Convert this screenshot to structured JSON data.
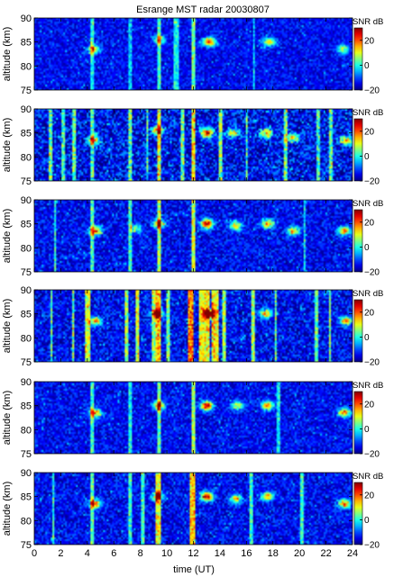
{
  "chart_data": {
    "type": "heatmap",
    "title": "Esrange MST radar 20030807",
    "xlabel": "time (UT)",
    "ylabel": "altitude (km)",
    "xlim": [
      0,
      24
    ],
    "ylim": [
      75,
      90
    ],
    "x_ticks": [
      "0",
      "2",
      "4",
      "6",
      "8",
      "10",
      "12",
      "14",
      "16",
      "18",
      "20",
      "22",
      "24"
    ],
    "y_ticks": [
      "75",
      "80",
      "85",
      "90"
    ],
    "colorbar": {
      "label": "SNR dB",
      "ticks": [
        "−20",
        "0",
        "20"
      ],
      "range": [
        -20,
        30
      ]
    },
    "panels": [
      {
        "noise": 0.1,
        "stripes": [
          {
            "t": 4.4,
            "w": 0.15,
            "s": 0.25
          },
          {
            "t": 7.2,
            "w": 0.1,
            "s": 0.2
          },
          {
            "t": 9.4,
            "w": 0.15,
            "s": 0.3
          },
          {
            "t": 10.7,
            "w": 0.2,
            "s": 0.25
          },
          {
            "t": 12.0,
            "w": 0.12,
            "s": 0.35
          },
          {
            "t": 16.6,
            "w": 0.1,
            "s": 0.2
          }
        ],
        "echoes": [
          {
            "t": 4.5,
            "a": 83.5,
            "amp": 0.55
          },
          {
            "t": 9.4,
            "a": 85.5,
            "amp": 0.45
          },
          {
            "t": 13.2,
            "a": 85.0,
            "amp": 0.7
          },
          {
            "t": 17.7,
            "a": 85.0,
            "amp": 0.55
          },
          {
            "t": 23.3,
            "a": 83.5,
            "amp": 0.45
          }
        ]
      },
      {
        "noise": 0.18,
        "stripes": [
          {
            "t": 1.2,
            "w": 0.12,
            "s": 0.35
          },
          {
            "t": 2.2,
            "w": 0.1,
            "s": 0.3
          },
          {
            "t": 3.0,
            "w": 0.1,
            "s": 0.35
          },
          {
            "t": 4.4,
            "w": 0.12,
            "s": 0.3
          },
          {
            "t": 7.2,
            "w": 0.12,
            "s": 0.35
          },
          {
            "t": 8.5,
            "w": 0.1,
            "s": 0.3
          },
          {
            "t": 9.4,
            "w": 0.15,
            "s": 0.45
          },
          {
            "t": 11.2,
            "w": 0.1,
            "s": 0.35
          },
          {
            "t": 12.0,
            "w": 0.15,
            "s": 0.5
          },
          {
            "t": 14.0,
            "w": 0.12,
            "s": 0.4
          },
          {
            "t": 16.0,
            "w": 0.1,
            "s": 0.3
          },
          {
            "t": 19.0,
            "w": 0.12,
            "s": 0.35
          },
          {
            "t": 21.4,
            "w": 0.1,
            "s": 0.3
          },
          {
            "t": 22.4,
            "w": 0.12,
            "s": 0.35
          }
        ],
        "echoes": [
          {
            "t": 4.5,
            "a": 83.5,
            "amp": 0.65
          },
          {
            "t": 9.3,
            "a": 85.5,
            "amp": 0.6
          },
          {
            "t": 13.0,
            "a": 85.0,
            "amp": 0.85
          },
          {
            "t": 15.0,
            "a": 85.0,
            "amp": 0.5
          },
          {
            "t": 17.5,
            "a": 85.0,
            "amp": 0.6
          },
          {
            "t": 19.5,
            "a": 84.0,
            "amp": 0.55
          },
          {
            "t": 23.5,
            "a": 83.5,
            "amp": 0.6
          }
        ]
      },
      {
        "noise": 0.12,
        "stripes": [
          {
            "t": 1.6,
            "w": 0.1,
            "s": 0.3
          },
          {
            "t": 4.4,
            "w": 0.12,
            "s": 0.3
          },
          {
            "t": 7.2,
            "w": 0.1,
            "s": 0.3
          },
          {
            "t": 9.4,
            "w": 0.15,
            "s": 0.4
          },
          {
            "t": 12.0,
            "w": 0.15,
            "s": 0.45
          },
          {
            "t": 20.4,
            "w": 0.1,
            "s": 0.25
          }
        ],
        "echoes": [
          {
            "t": 4.6,
            "a": 83.5,
            "amp": 0.65
          },
          {
            "t": 7.6,
            "a": 84.0,
            "amp": 0.4
          },
          {
            "t": 9.4,
            "a": 85.0,
            "amp": 0.65
          },
          {
            "t": 13.0,
            "a": 85.0,
            "amp": 0.9
          },
          {
            "t": 15.2,
            "a": 84.5,
            "amp": 0.55
          },
          {
            "t": 17.6,
            "a": 85.0,
            "amp": 0.65
          },
          {
            "t": 19.5,
            "a": 83.5,
            "amp": 0.55
          },
          {
            "t": 23.4,
            "a": 83.5,
            "amp": 0.65
          }
        ]
      },
      {
        "noise": 0.14,
        "stripes": [
          {
            "t": 1.3,
            "w": 0.12,
            "s": 0.35
          },
          {
            "t": 2.9,
            "w": 0.1,
            "s": 0.4
          },
          {
            "t": 4.0,
            "w": 0.2,
            "s": 0.45
          },
          {
            "t": 7.0,
            "w": 0.15,
            "s": 0.4
          },
          {
            "t": 7.8,
            "w": 0.12,
            "s": 0.45
          },
          {
            "t": 9.0,
            "w": 0.12,
            "s": 0.4
          },
          {
            "t": 9.4,
            "w": 0.2,
            "s": 0.55
          },
          {
            "t": 10.1,
            "w": 0.1,
            "s": 0.35
          },
          {
            "t": 11.8,
            "w": 0.25,
            "s": 0.65
          },
          {
            "t": 12.8,
            "w": 0.4,
            "s": 0.5
          },
          {
            "t": 13.6,
            "w": 0.25,
            "s": 0.5
          },
          {
            "t": 14.3,
            "w": 0.15,
            "s": 0.4
          },
          {
            "t": 16.5,
            "w": 0.15,
            "s": 0.4
          },
          {
            "t": 18.2,
            "w": 0.1,
            "s": 0.35
          },
          {
            "t": 21.3,
            "w": 0.1,
            "s": 0.35
          },
          {
            "t": 22.3,
            "w": 0.12,
            "s": 0.4
          }
        ],
        "echoes": [
          {
            "t": 4.6,
            "a": 83.5,
            "amp": 0.65
          },
          {
            "t": 9.3,
            "a": 85.0,
            "amp": 0.6
          },
          {
            "t": 13.2,
            "a": 85.0,
            "amp": 0.9
          },
          {
            "t": 17.5,
            "a": 85.0,
            "amp": 0.6
          },
          {
            "t": 23.5,
            "a": 83.5,
            "amp": 0.6
          }
        ]
      },
      {
        "noise": 0.11,
        "stripes": [
          {
            "t": 4.4,
            "w": 0.12,
            "s": 0.3
          },
          {
            "t": 7.2,
            "w": 0.1,
            "s": 0.25
          },
          {
            "t": 9.4,
            "w": 0.15,
            "s": 0.35
          },
          {
            "t": 12.0,
            "w": 0.15,
            "s": 0.4
          },
          {
            "t": 18.4,
            "w": 0.1,
            "s": 0.25
          }
        ],
        "echoes": [
          {
            "t": 4.6,
            "a": 83.5,
            "amp": 0.65
          },
          {
            "t": 9.4,
            "a": 85.0,
            "amp": 0.6
          },
          {
            "t": 13.0,
            "a": 85.0,
            "amp": 0.9
          },
          {
            "t": 15.3,
            "a": 85.0,
            "amp": 0.5
          },
          {
            "t": 17.6,
            "a": 85.0,
            "amp": 0.65
          },
          {
            "t": 23.4,
            "a": 83.5,
            "amp": 0.65
          }
        ]
      },
      {
        "noise": 0.12,
        "stripes": [
          {
            "t": 1.4,
            "w": 0.1,
            "s": 0.3
          },
          {
            "t": 4.4,
            "w": 0.12,
            "s": 0.35
          },
          {
            "t": 7.2,
            "w": 0.12,
            "s": 0.3
          },
          {
            "t": 8.2,
            "w": 0.12,
            "s": 0.3
          },
          {
            "t": 9.4,
            "w": 0.2,
            "s": 0.5
          },
          {
            "t": 11.9,
            "w": 0.2,
            "s": 0.55
          },
          {
            "t": 16.4,
            "w": 0.12,
            "s": 0.3
          },
          {
            "t": 20.2,
            "w": 0.1,
            "s": 0.3
          }
        ],
        "echoes": [
          {
            "t": 4.6,
            "a": 83.5,
            "amp": 0.65
          },
          {
            "t": 9.3,
            "a": 85.0,
            "amp": 0.6
          },
          {
            "t": 13.0,
            "a": 85.0,
            "amp": 0.85
          },
          {
            "t": 15.2,
            "a": 84.5,
            "amp": 0.5
          },
          {
            "t": 17.6,
            "a": 85.0,
            "amp": 0.65
          },
          {
            "t": 23.4,
            "a": 83.5,
            "amp": 0.65
          }
        ]
      }
    ]
  }
}
